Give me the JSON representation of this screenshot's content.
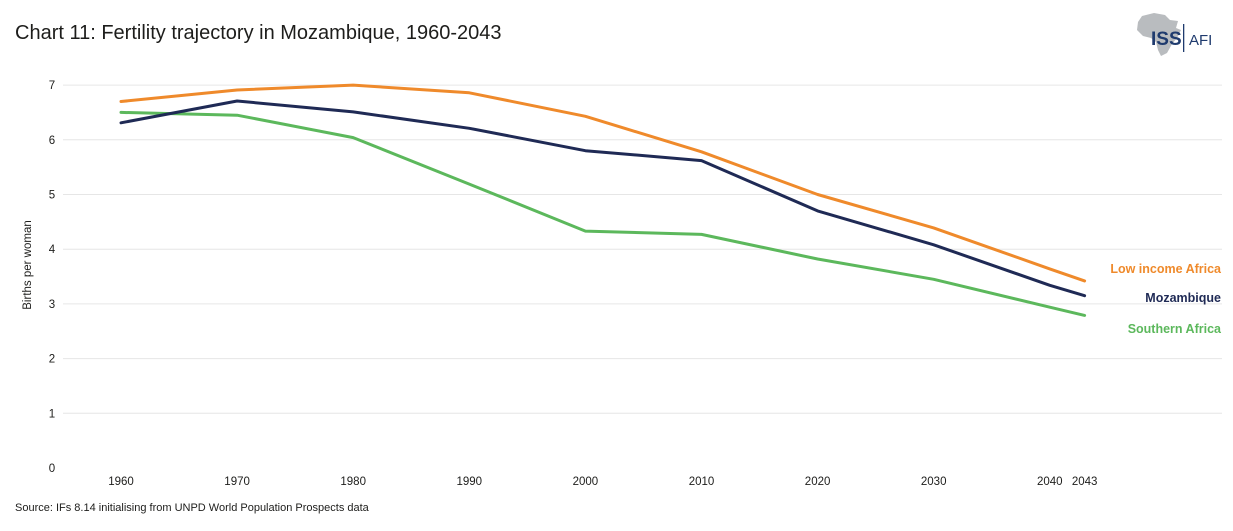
{
  "header": {
    "title": "Chart 11: Fertility trajectory in Mozambique, 1960-2043",
    "logo_primary": "ISS",
    "logo_secondary": "AFI"
  },
  "footer": {
    "source": "Source: IFs 8.14 initialising from UNPD World Population Prospects data"
  },
  "colors": {
    "low_income_africa": "#ef8a2b",
    "mozambique": "#1f2a55",
    "southern_africa": "#5cb85c",
    "gridline": "#e6e6e6",
    "logo_navy": "#1f3b6e",
    "logo_map": "#b9bcbf"
  },
  "chart_data": {
    "type": "line",
    "title": "Chart 11: Fertility trajectory in Mozambique, 1960-2043",
    "xlabel": "",
    "ylabel": "Births per woman",
    "x": [
      1960,
      1970,
      1980,
      1990,
      2000,
      2010,
      2020,
      2030,
      2040,
      2043
    ],
    "x_tick_labels": [
      "1960",
      "1970",
      "1980",
      "1990",
      "2000",
      "2010",
      "2020",
      "2030",
      "2040",
      "2043"
    ],
    "y_ticks": [
      0,
      1,
      2,
      3,
      4,
      5,
      6,
      7
    ],
    "ylim": [
      0,
      7.5
    ],
    "grid": "horizontal",
    "legend": "inline labels at line ends",
    "series": [
      {
        "name": "Low income Africa",
        "color_key": "low_income_africa",
        "values": [
          6.7,
          6.91,
          7.0,
          6.86,
          6.43,
          5.78,
          5.0,
          4.39,
          3.64,
          3.42
        ]
      },
      {
        "name": "Mozambique",
        "color_key": "mozambique",
        "values": [
          6.31,
          6.71,
          6.51,
          6.21,
          5.8,
          5.62,
          4.7,
          4.08,
          3.34,
          3.15
        ]
      },
      {
        "name": "Southern Africa",
        "color_key": "southern_africa",
        "values": [
          6.5,
          6.45,
          6.04,
          5.19,
          4.33,
          4.27,
          3.82,
          3.45,
          2.94,
          2.79
        ]
      }
    ]
  }
}
